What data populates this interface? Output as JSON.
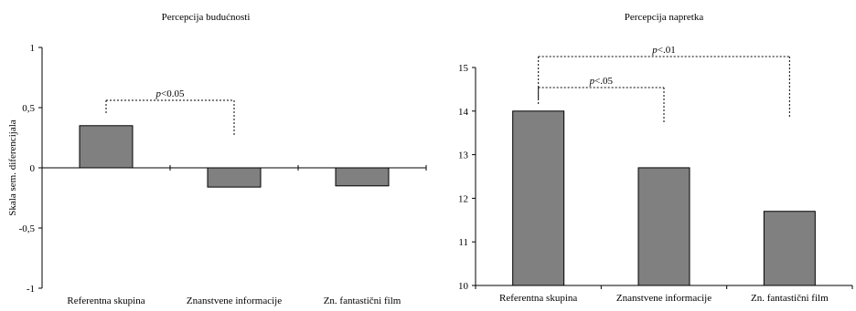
{
  "chart_data": [
    {
      "type": "bar",
      "title": "Percepcija budućnosti",
      "ylabel": "Skala sem. diferencijala",
      "xlabel": "",
      "categories": [
        "Referentna skupina",
        "Znanstvene informacije",
        "Zn. fantastični film"
      ],
      "values": [
        0.35,
        -0.16,
        -0.15
      ],
      "ylim": [
        -1,
        1
      ],
      "yticks": [
        -1,
        -0.5,
        0,
        0.5,
        1
      ],
      "ytick_labels": [
        "-1",
        "-0,5",
        "0",
        "0,5",
        "1"
      ],
      "bar_color": "#808080",
      "annotations": [
        {
          "italic": "p",
          "rest": "<0.05",
          "from": 0,
          "to": 1
        }
      ]
    },
    {
      "type": "bar",
      "title": "Percepcija napretka",
      "ylabel": "",
      "xlabel": "",
      "categories": [
        "Referentna skupina",
        "Znanstvene informacije",
        "Zn. fantastični film"
      ],
      "values": [
        14.0,
        12.7,
        11.7
      ],
      "ylim": [
        10,
        15
      ],
      "yticks": [
        10,
        11,
        12,
        13,
        14,
        15
      ],
      "ytick_labels": [
        "10",
        "11",
        "12",
        "13",
        "14",
        "15"
      ],
      "bar_color": "#808080",
      "annotations": [
        {
          "italic": "p",
          "rest": "<.05",
          "from": 0,
          "to": 1
        },
        {
          "italic": "p",
          "rest": "<.01",
          "from": 0,
          "to": 2
        }
      ]
    }
  ]
}
